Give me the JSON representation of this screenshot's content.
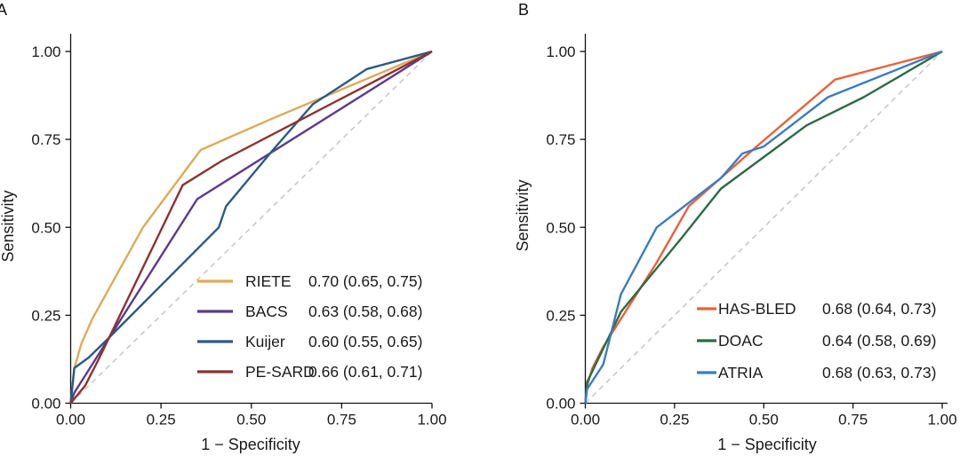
{
  "chart_data": [
    {
      "panel": "A",
      "type": "line",
      "xlabel": "1 − Specificity",
      "ylabel": "Sensitivity",
      "xlim": [
        0,
        1
      ],
      "ylim": [
        0,
        1
      ],
      "x_ticks": [
        "0.00",
        "0.25",
        "0.50",
        "0.75",
        "1.00"
      ],
      "y_ticks": [
        "0.00",
        "0.25",
        "0.50",
        "0.75",
        "1.00"
      ],
      "legend_position": "bottom-right",
      "reference_line": {
        "x": [
          0,
          1
        ],
        "y": [
          0,
          1
        ],
        "style": "dashed",
        "color": "#c8c8c8"
      },
      "series": [
        {
          "name": "RIETE",
          "auc": "0.70 (0.65, 0.75)",
          "color": "#deaa58",
          "x": [
            0,
            0.01,
            0.03,
            0.06,
            0.2,
            0.36,
            0.56,
            1.0
          ],
          "y": [
            0,
            0.1,
            0.17,
            0.24,
            0.5,
            0.72,
            0.81,
            1.0
          ]
        },
        {
          "name": "BACS",
          "auc": "0.63 (0.58, 0.68)",
          "color": "#5c3b8a",
          "x": [
            0,
            0.01,
            0.35,
            1.0
          ],
          "y": [
            0,
            0.03,
            0.58,
            1.0
          ]
        },
        {
          "name": "Kuijer",
          "auc": "0.60 (0.55, 0.65)",
          "color": "#2b5a86",
          "x": [
            0,
            0.01,
            0.05,
            0.1,
            0.41,
            0.43,
            0.56,
            0.67,
            0.82,
            1.0
          ],
          "y": [
            0,
            0.1,
            0.13,
            0.18,
            0.5,
            0.56,
            0.72,
            0.85,
            0.95,
            1.0
          ]
        },
        {
          "name": "PE-SARD",
          "auc": "0.66 (0.61, 0.71)",
          "color": "#8b3432",
          "x": [
            0,
            0.04,
            0.08,
            0.31,
            0.42,
            1.0
          ],
          "y": [
            0,
            0.05,
            0.13,
            0.62,
            0.69,
            1.0
          ]
        }
      ]
    },
    {
      "panel": "B",
      "type": "line",
      "xlabel": "1 − Specificity",
      "ylabel": "Sensitivity",
      "xlim": [
        0,
        1
      ],
      "ylim": [
        0,
        1
      ],
      "x_ticks": [
        "0.00",
        "0.25",
        "0.50",
        "0.75",
        "1.00"
      ],
      "y_ticks": [
        "0.00",
        "0.25",
        "0.50",
        "0.75",
        "1.00"
      ],
      "legend_position": "bottom-right",
      "reference_line": {
        "x": [
          0,
          1
        ],
        "y": [
          0,
          1
        ],
        "style": "dashed",
        "color": "#c8c8c8"
      },
      "series": [
        {
          "name": "HAS-BLED",
          "auc": "0.68 (0.64, 0.73)",
          "color": "#e8623a",
          "x": [
            0,
            0.005,
            0.02,
            0.05,
            0.1,
            0.2,
            0.29,
            0.48,
            0.7,
            1.0
          ],
          "y": [
            0,
            0.05,
            0.1,
            0.16,
            0.24,
            0.4,
            0.56,
            0.73,
            0.92,
            1.0
          ]
        },
        {
          "name": "DOAC",
          "auc": "0.64 (0.58, 0.69)",
          "color": "#2d6a45",
          "x": [
            0,
            0.005,
            0.1,
            0.27,
            0.38,
            0.5,
            0.62,
            0.78,
            1.0
          ],
          "y": [
            0,
            0.06,
            0.26,
            0.47,
            0.61,
            0.7,
            0.79,
            0.87,
            1.0
          ]
        },
        {
          "name": "ATRIA",
          "auc": "0.68 (0.63, 0.73)",
          "color": "#3a7cbf",
          "x": [
            0,
            0.005,
            0.05,
            0.1,
            0.2,
            0.38,
            0.44,
            0.5,
            0.68,
            1.0
          ],
          "y": [
            0,
            0.04,
            0.11,
            0.31,
            0.5,
            0.64,
            0.71,
            0.73,
            0.87,
            1.0
          ]
        }
      ]
    }
  ]
}
